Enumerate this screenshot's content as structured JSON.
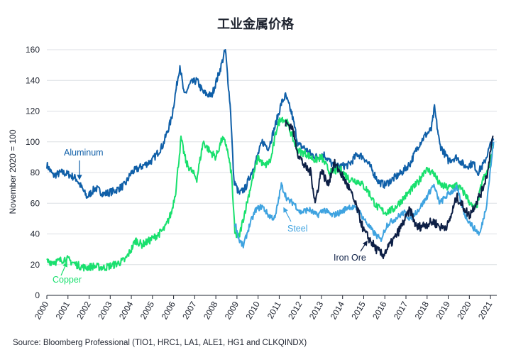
{
  "chart_data": {
    "type": "line",
    "title": "工业金属价格",
    "ylabel": "November 2020 = 100",
    "xlabel": "",
    "source": "Source: Bloomberg Professional (TIO1, HRC1, LA1, ALE1, HG1 and CLKQINDX)",
    "ylim": [
      0,
      160
    ],
    "xlim": [
      2000,
      2021.3
    ],
    "yticks": [
      "0",
      "20",
      "40",
      "60",
      "80",
      "100",
      "120",
      "140",
      "160"
    ],
    "xticks": [
      "2000",
      "2001",
      "2002",
      "2003",
      "2004",
      "2005",
      "2006",
      "2007",
      "2008",
      "2009",
      "2010",
      "2011",
      "2012",
      "2013",
      "2014",
      "2015",
      "2016",
      "2017",
      "2018",
      "2019",
      "2020",
      "2021"
    ],
    "grid": "horizontal",
    "legend": "inline labels",
    "series": [
      {
        "name": "Aluminum",
        "color": "#0f5fa8",
        "points": [
          [
            2000,
            85
          ],
          [
            2000.3,
            78
          ],
          [
            2000.7,
            80
          ],
          [
            2001,
            79
          ],
          [
            2001.4,
            76
          ],
          [
            2001.9,
            64
          ],
          [
            2002.3,
            70
          ],
          [
            2002.7,
            66
          ],
          [
            2003.2,
            68
          ],
          [
            2003.7,
            72
          ],
          [
            2004,
            80
          ],
          [
            2004.5,
            84
          ],
          [
            2005,
            88
          ],
          [
            2005.5,
            98
          ],
          [
            2005.9,
            115
          ],
          [
            2006.3,
            150
          ],
          [
            2006.5,
            130
          ],
          [
            2006.8,
            138
          ],
          [
            2007.1,
            140
          ],
          [
            2007.4,
            132
          ],
          [
            2007.8,
            130
          ],
          [
            2008.2,
            147
          ],
          [
            2008.45,
            160
          ],
          [
            2008.7,
            120
          ],
          [
            2008.85,
            75
          ],
          [
            2009.1,
            66
          ],
          [
            2009.4,
            70
          ],
          [
            2009.8,
            84
          ],
          [
            2010.2,
            100
          ],
          [
            2010.5,
            96
          ],
          [
            2010.8,
            110
          ],
          [
            2011.1,
            125
          ],
          [
            2011.3,
            130
          ],
          [
            2011.6,
            118
          ],
          [
            2011.9,
            98
          ],
          [
            2012.2,
            96
          ],
          [
            2012.5,
            92
          ],
          [
            2012.8,
            90
          ],
          [
            2013.1,
            92
          ],
          [
            2013.6,
            84
          ],
          [
            2013.9,
            84
          ],
          [
            2014.3,
            85
          ],
          [
            2014.7,
            92
          ],
          [
            2015.0,
            90
          ],
          [
            2015.3,
            84
          ],
          [
            2015.7,
            74
          ],
          [
            2016.0,
            72
          ],
          [
            2016.4,
            76
          ],
          [
            2016.8,
            80
          ],
          [
            2017.2,
            86
          ],
          [
            2017.6,
            98
          ],
          [
            2017.9,
            104
          ],
          [
            2018.2,
            108
          ],
          [
            2018.35,
            122
          ],
          [
            2018.6,
            98
          ],
          [
            2019.0,
            88
          ],
          [
            2019.4,
            90
          ],
          [
            2019.8,
            84
          ],
          [
            2020.2,
            86
          ],
          [
            2020.4,
            80
          ],
          [
            2020.7,
            86
          ],
          [
            2020.9,
            94
          ],
          [
            2021.05,
            100
          ],
          [
            2021.15,
            101
          ]
        ]
      },
      {
        "name": "Copper",
        "color": "#19e06e",
        "points": [
          [
            2000,
            22
          ],
          [
            2000.5,
            22
          ],
          [
            2000.9,
            24
          ],
          [
            2001.4,
            20
          ],
          [
            2001.8,
            18
          ],
          [
            2002.2,
            19
          ],
          [
            2002.7,
            18
          ],
          [
            2003.2,
            20
          ],
          [
            2003.7,
            23
          ],
          [
            2004.0,
            30
          ],
          [
            2004.2,
            36
          ],
          [
            2004.5,
            33
          ],
          [
            2004.9,
            36
          ],
          [
            2005.3,
            40
          ],
          [
            2005.6,
            44
          ],
          [
            2005.9,
            54
          ],
          [
            2006.1,
            68
          ],
          [
            2006.35,
            102
          ],
          [
            2006.6,
            86
          ],
          [
            2006.9,
            80
          ],
          [
            2007.1,
            76
          ],
          [
            2007.4,
            100
          ],
          [
            2007.7,
            94
          ],
          [
            2008.0,
            90
          ],
          [
            2008.3,
            102
          ],
          [
            2008.5,
            98
          ],
          [
            2008.75,
            78
          ],
          [
            2008.9,
            40
          ],
          [
            2009.1,
            38
          ],
          [
            2009.4,
            56
          ],
          [
            2009.7,
            74
          ],
          [
            2010.0,
            90
          ],
          [
            2010.3,
            84
          ],
          [
            2010.6,
            88
          ],
          [
            2010.9,
            110
          ],
          [
            2011.1,
            116
          ],
          [
            2011.4,
            112
          ],
          [
            2011.7,
            100
          ],
          [
            2011.9,
            94
          ],
          [
            2012.3,
            92
          ],
          [
            2012.7,
            88
          ],
          [
            2013.0,
            90
          ],
          [
            2013.4,
            80
          ],
          [
            2013.9,
            82
          ],
          [
            2014.3,
            76
          ],
          [
            2014.8,
            74
          ],
          [
            2015.2,
            68
          ],
          [
            2015.6,
            58
          ],
          [
            2016.0,
            54
          ],
          [
            2016.4,
            56
          ],
          [
            2016.8,
            62
          ],
          [
            2017.2,
            68
          ],
          [
            2017.6,
            74
          ],
          [
            2017.9,
            82
          ],
          [
            2018.3,
            80
          ],
          [
            2018.6,
            72
          ],
          [
            2019.0,
            70
          ],
          [
            2019.4,
            72
          ],
          [
            2019.8,
            66
          ],
          [
            2020.2,
            56
          ],
          [
            2020.4,
            60
          ],
          [
            2020.6,
            74
          ],
          [
            2020.9,
            82
          ],
          [
            2021.05,
            92
          ],
          [
            2021.15,
            98
          ]
        ]
      },
      {
        "name": "Steel",
        "color": "#3fa3e0",
        "points": [
          [
            2008.9,
            48
          ],
          [
            2009.1,
            36
          ],
          [
            2009.3,
            32
          ],
          [
            2009.6,
            46
          ],
          [
            2009.9,
            56
          ],
          [
            2010.2,
            58
          ],
          [
            2010.5,
            52
          ],
          [
            2010.8,
            50
          ],
          [
            2011.1,
            72
          ],
          [
            2011.4,
            62
          ],
          [
            2011.7,
            60
          ],
          [
            2012.0,
            54
          ],
          [
            2012.4,
            56
          ],
          [
            2012.8,
            52
          ],
          [
            2013.1,
            56
          ],
          [
            2013.5,
            52
          ],
          [
            2013.9,
            54
          ],
          [
            2014.3,
            58
          ],
          [
            2014.7,
            56
          ],
          [
            2015.0,
            50
          ],
          [
            2015.4,
            42
          ],
          [
            2015.8,
            36
          ],
          [
            2016.1,
            46
          ],
          [
            2016.5,
            50
          ],
          [
            2016.9,
            54
          ],
          [
            2017.2,
            50
          ],
          [
            2017.6,
            56
          ],
          [
            2017.9,
            62
          ],
          [
            2018.3,
            72
          ],
          [
            2018.6,
            60
          ],
          [
            2019.0,
            66
          ],
          [
            2019.4,
            70
          ],
          [
            2019.8,
            52
          ],
          [
            2020.2,
            44
          ],
          [
            2020.5,
            40
          ],
          [
            2020.8,
            58
          ],
          [
            2021.0,
            82
          ],
          [
            2021.15,
            100
          ]
        ]
      },
      {
        "name": "Iron Ore",
        "color": "#0d1f45",
        "points": [
          [
            2011.3,
            112
          ],
          [
            2011.6,
            110
          ],
          [
            2011.9,
            92
          ],
          [
            2012.2,
            84
          ],
          [
            2012.5,
            80
          ],
          [
            2012.7,
            60
          ],
          [
            2013.0,
            82
          ],
          [
            2013.3,
            72
          ],
          [
            2013.6,
            86
          ],
          [
            2013.9,
            80
          ],
          [
            2014.3,
            70
          ],
          [
            2014.7,
            56
          ],
          [
            2015.0,
            42
          ],
          [
            2015.3,
            36
          ],
          [
            2015.6,
            30
          ],
          [
            2015.9,
            26
          ],
          [
            2016.2,
            32
          ],
          [
            2016.5,
            38
          ],
          [
            2016.9,
            48
          ],
          [
            2017.2,
            56
          ],
          [
            2017.5,
            44
          ],
          [
            2017.9,
            46
          ],
          [
            2018.3,
            48
          ],
          [
            2018.7,
            44
          ],
          [
            2019.0,
            46
          ],
          [
            2019.4,
            64
          ],
          [
            2019.7,
            58
          ],
          [
            2020.0,
            52
          ],
          [
            2020.3,
            60
          ],
          [
            2020.6,
            68
          ],
          [
            2020.9,
            82
          ],
          [
            2021.0,
            96
          ],
          [
            2021.12,
            104
          ]
        ]
      }
    ],
    "annotations": [
      {
        "text": "Aluminum",
        "series": "Aluminum"
      },
      {
        "text": "Copper",
        "series": "Copper"
      },
      {
        "text": "Steel",
        "series": "Steel"
      },
      {
        "text": "Iron Ore",
        "series": "Iron Ore"
      }
    ]
  }
}
